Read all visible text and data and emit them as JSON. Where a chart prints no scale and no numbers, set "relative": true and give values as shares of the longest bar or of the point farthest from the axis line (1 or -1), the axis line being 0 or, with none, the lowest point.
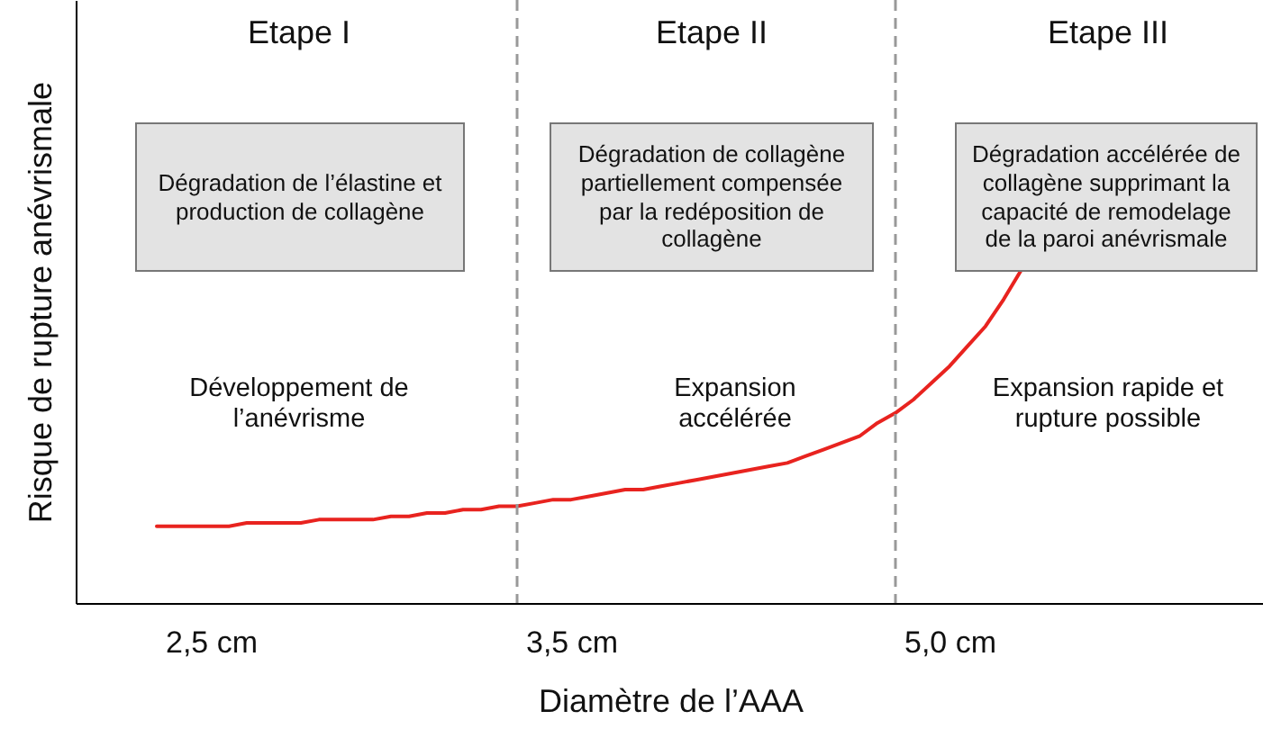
{
  "chart_data": {
    "type": "line",
    "relative": true,
    "xlabel": "Diamètre de l’AAA",
    "ylabel": "Risque de rupture anévrismale",
    "categories": [
      null,
      null,
      null,
      null,
      null,
      null,
      null,
      "2,5 cm",
      null,
      null,
      null,
      null,
      null,
      null,
      null,
      null,
      null,
      null,
      null,
      null,
      null,
      null,
      null,
      null,
      null,
      null,
      null,
      "3,5 cm",
      null,
      null,
      null,
      null,
      null,
      null,
      null,
      null,
      null,
      null,
      null,
      null,
      null,
      null,
      null,
      null,
      null,
      null,
      null,
      null,
      "5,0 cm",
      null,
      null,
      null,
      null,
      null,
      null,
      null,
      null,
      null,
      null,
      null,
      null,
      null,
      null,
      null,
      null,
      null
    ],
    "series": [
      {
        "color": "#e8231f",
        "values": [
          null,
          null,
          null,
          null,
          0.23,
          0.23,
          0.23,
          0.23,
          0.23,
          0.24,
          0.24,
          0.24,
          0.24,
          0.25,
          0.25,
          0.25,
          0.25,
          0.26,
          0.26,
          0.27,
          0.27,
          0.28,
          0.28,
          0.29,
          0.29,
          0.3,
          0.31,
          0.31,
          0.32,
          0.33,
          0.34,
          0.34,
          0.35,
          0.36,
          0.37,
          0.38,
          0.39,
          0.4,
          0.41,
          0.42,
          0.44,
          0.46,
          0.48,
          0.5,
          0.54,
          0.57,
          0.61,
          0.66,
          0.71,
          0.77,
          0.83,
          0.91,
          1,
          null,
          null,
          null,
          null,
          null,
          null,
          null,
          null,
          null,
          null,
          null,
          null,
          null
        ]
      }
    ],
    "grid": false,
    "marker": "none",
    "line_style": "solid",
    "annotations": [
      "Etape I",
      "Etape II",
      "Etape III",
      "Dégradation de l’élastine et production de collagène",
      "Dégradation de collagène partiellement compensée par la redéposition de collagène",
      "Dégradation accélérée de collagène supprimant la capacité de remodelage de la paroi anévrismale",
      "Développement de l’anévrisme",
      "Expansion accélérée",
      "Expansion rapide et rupture possible"
    ]
  }
}
